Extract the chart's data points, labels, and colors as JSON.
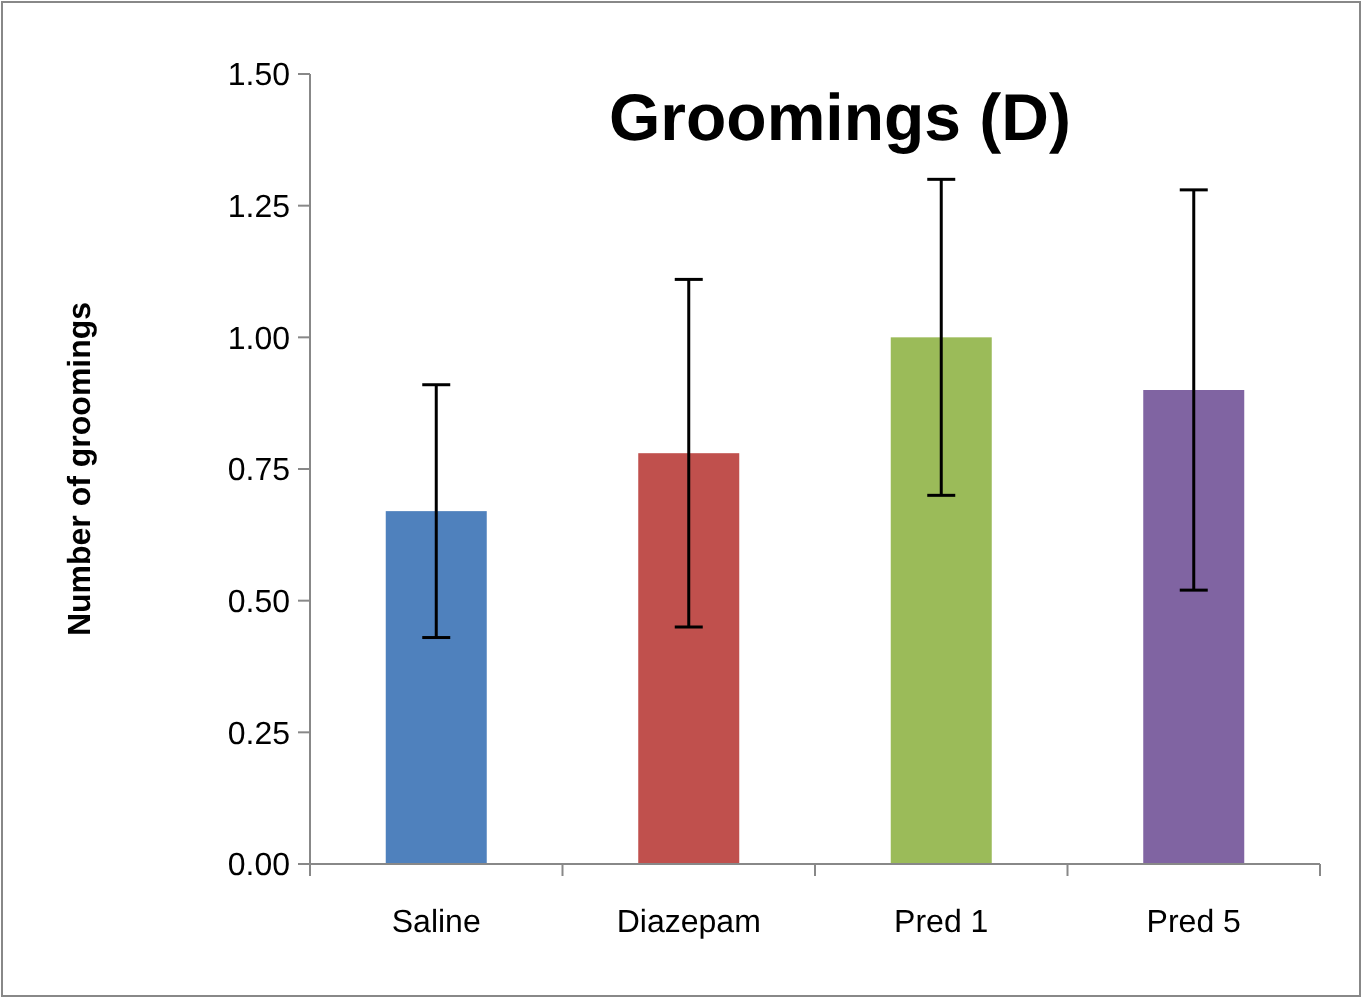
{
  "chart_data": {
    "type": "bar",
    "title": "Groomings (D)",
    "ylabel": "Number of groomings",
    "categories": [
      "Saline",
      "Diazepam",
      "Pred 1",
      "Pred 5"
    ],
    "values": [
      0.67,
      0.78,
      1.0,
      0.9
    ],
    "colors": [
      "#4f81bd",
      "#c0504d",
      "#9bbb59",
      "#8064a2"
    ],
    "errors": [
      0.24,
      0.33,
      0.3,
      0.38
    ],
    "ylim": [
      0,
      1.5
    ],
    "yticks": [
      {
        "value": 0,
        "label": "0.00"
      },
      {
        "value": 0.25,
        "label": "0.25"
      },
      {
        "value": 0.5,
        "label": "0.50"
      },
      {
        "value": 0.75,
        "label": "0.75"
      },
      {
        "value": 1,
        "label": "1.00"
      },
      {
        "value": 1.25,
        "label": "1.25"
      },
      {
        "value": 1.5,
        "label": "1.50"
      }
    ],
    "grid": false
  }
}
